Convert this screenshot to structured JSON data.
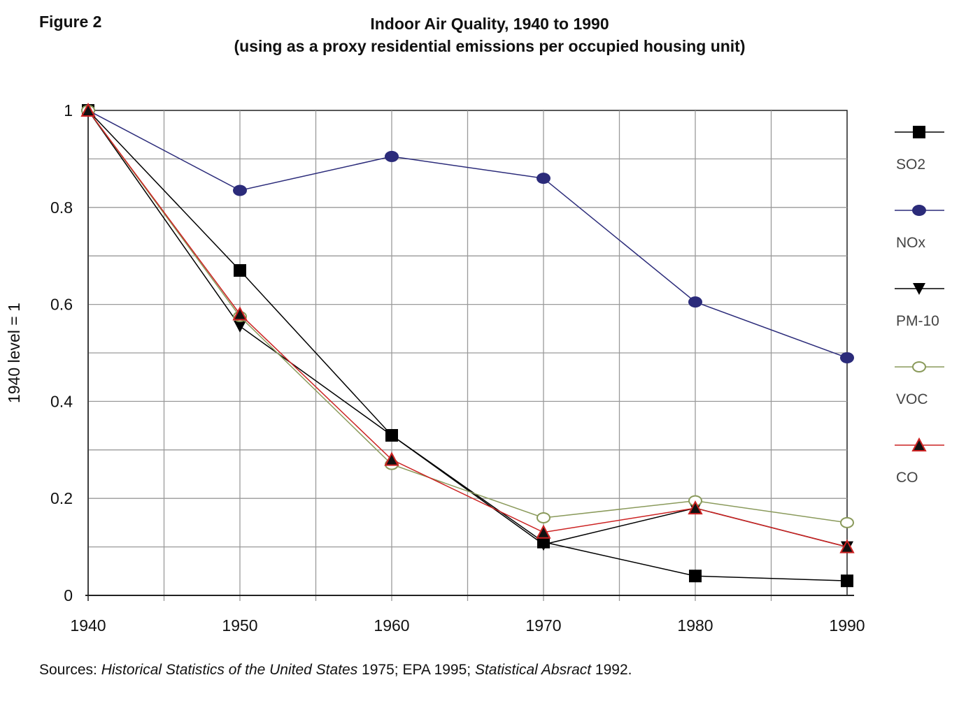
{
  "figure_label": "Figure 2",
  "sources": {
    "prefix": "Sources: ",
    "ref1": "Historical Statistics of the United States",
    "ref1_year": " 1975; EPA 1995; ",
    "ref2": "Statistical Absract",
    "ref2_year": " 1992."
  },
  "colors": {
    "SO2": "#000000",
    "NOx": "#2b2b7a",
    "PM-10": "#000000",
    "VOC": "#8a9a5b",
    "CO": "#cc2222"
  },
  "chart_data": {
    "type": "line",
    "title": "Indoor Air Quality, 1940 to 1990",
    "subtitle": "(using as a proxy residential emissions per occupied housing unit)",
    "xlabel": "",
    "ylabel": "1940 level = 1",
    "x": [
      1940,
      1950,
      1960,
      1970,
      1980,
      1990
    ],
    "xlim": [
      1940,
      1990
    ],
    "ylim": [
      0,
      1
    ],
    "x_ticks": [
      "1940",
      "1950",
      "1960",
      "1970",
      "1980",
      "1990"
    ],
    "y_ticks": [
      {
        "value": 0,
        "label": "0"
      },
      {
        "value": 0.2,
        "label": "0.2"
      },
      {
        "value": 0.4,
        "label": "0.4"
      },
      {
        "value": 0.6,
        "label": "0.6"
      },
      {
        "value": 0.8,
        "label": "0.8"
      },
      {
        "value": 1,
        "label": "1"
      }
    ],
    "grid": true,
    "legend_position": "right",
    "series": [
      {
        "name": "SO2",
        "marker": "square",
        "values": [
          1.0,
          0.67,
          0.33,
          0.11,
          0.04,
          0.03
        ]
      },
      {
        "name": "NOx",
        "marker": "circle",
        "values": [
          1.0,
          0.835,
          0.905,
          0.86,
          0.605,
          0.49
        ]
      },
      {
        "name": "PM-10",
        "marker": "triangle-down",
        "values": [
          1.0,
          0.555,
          0.33,
          0.105,
          0.18,
          0.1
        ]
      },
      {
        "name": "VOC",
        "marker": "circle-open",
        "values": [
          1.0,
          0.575,
          0.27,
          0.16,
          0.195,
          0.15
        ]
      },
      {
        "name": "CO",
        "marker": "triangle-up",
        "values": [
          1.0,
          0.58,
          0.28,
          0.13,
          0.18,
          0.1
        ]
      }
    ]
  }
}
